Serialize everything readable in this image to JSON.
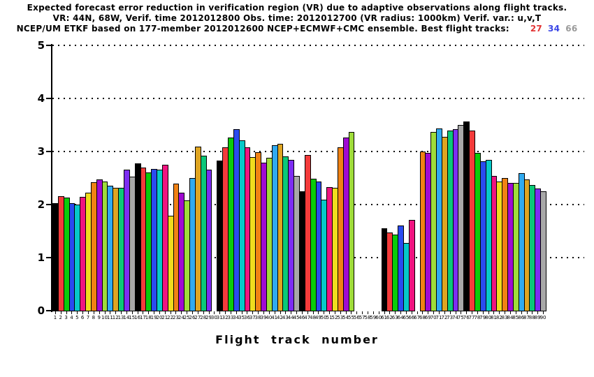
{
  "title": {
    "line1": "Expected forecast error reduction in verification region (VR) due to adaptive observations along flight tracks.",
    "line2": "VR: 44N, 68W, Verif. time 2012012800 Obs. time: 2012012700 (VR radius: 1000km)  Verif. var.: u,v,T",
    "line3_prefix": "NCEP/UM ETKF based on 177-member 2012012600 NCEP+ECMWF+CMC ensemble. Best flight tracks:",
    "best_tracks": [
      {
        "label": "27",
        "color": "#e23434"
      },
      {
        "label": "34",
        "color": "#3a46e6"
      },
      {
        "label": "66",
        "color": "#9a9a9a"
      }
    ]
  },
  "chart_data": {
    "type": "bar",
    "title": "Expected forecast error reduction in verification region (VR) due to adaptive observations along flight tracks.",
    "xlabel": "Flight track number",
    "ylabel": "",
    "ylim": [
      0,
      5
    ],
    "yticks": [
      "0",
      "1",
      "2",
      "3",
      "4",
      "5"
    ],
    "grid": "horizontal dotted black lines at y = 1,2,3,4,5",
    "legend": "none",
    "bar_color_rule": "color = palette[(track - 1) % 15], each bar outlined in black",
    "palette": [
      "#000000",
      "#f43b3b",
      "#0acc0a",
      "#2a4bf0",
      "#06c9c9",
      "#f01480",
      "#f0dc1e",
      "#f08214",
      "#a00ad2",
      "#9fdc3a",
      "#30aaf0",
      "#dfa522",
      "#0bc878",
      "#7d2df2",
      "#a8a8a8"
    ],
    "x": [
      1,
      2,
      3,
      4,
      5,
      6,
      7,
      8,
      9,
      10,
      11,
      12,
      13,
      14,
      15,
      16,
      17,
      18,
      19,
      20,
      21,
      22,
      23,
      24,
      25,
      26,
      27,
      28,
      29,
      30,
      31,
      32,
      33,
      34,
      35,
      36,
      37,
      38,
      39,
      40,
      41,
      42,
      43,
      44,
      45,
      46,
      47,
      48,
      49,
      50,
      51,
      52,
      53,
      54,
      55,
      56,
      57,
      58,
      59,
      60,
      61,
      62,
      63,
      64,
      65,
      66,
      67,
      68,
      69,
      70,
      71,
      72,
      73,
      74,
      75,
      76,
      77,
      78,
      79,
      80,
      81,
      82,
      83,
      84,
      85,
      86,
      87,
      88,
      89,
      90
    ],
    "values": [
      2.02,
      2.16,
      2.13,
      2.02,
      2.0,
      2.14,
      2.22,
      2.42,
      2.47,
      2.43,
      2.35,
      2.31,
      2.32,
      2.66,
      2.52,
      2.78,
      2.7,
      2.6,
      2.67,
      2.66,
      2.75,
      1.79,
      2.4,
      2.23,
      2.08,
      2.5,
      3.09,
      2.92,
      2.66,
      null,
      2.83,
      3.08,
      3.26,
      3.42,
      3.21,
      3.08,
      2.89,
      2.99,
      2.79,
      2.88,
      3.12,
      3.14,
      2.91,
      2.84,
      2.54,
      2.25,
      2.94,
      2.49,
      2.44,
      2.09,
      2.33,
      2.32,
      3.08,
      3.26,
      3.37,
      null,
      null,
      null,
      null,
      null,
      1.55,
      1.47,
      1.44,
      1.61,
      1.27,
      1.71,
      null,
      3.0,
      2.98,
      3.37,
      3.44,
      3.27,
      3.4,
      3.42,
      3.5,
      3.56,
      3.4,
      2.98,
      2.81,
      2.84,
      2.54,
      2.43,
      2.5,
      2.41,
      2.41,
      2.59,
      2.47,
      2.37,
      2.3,
      2.25
    ],
    "missing_tracks": [
      30,
      56,
      57,
      58,
      59,
      60,
      67
    ],
    "best_tracks": [
      27,
      34,
      66
    ]
  }
}
